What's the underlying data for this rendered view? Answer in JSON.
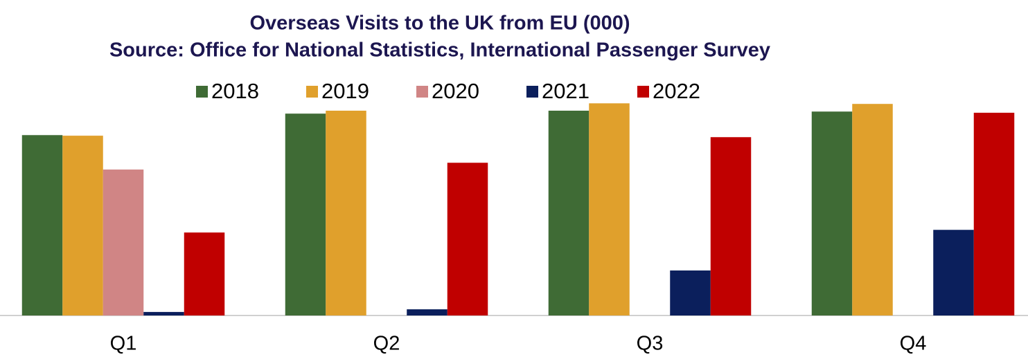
{
  "chart_data": {
    "type": "bar",
    "title": "Overseas Visits to the UK from EU (000)",
    "subtitle": "Source: Office for National Statistics, International Passenger Survey",
    "categories": [
      "Q1",
      "Q2",
      "Q3",
      "Q4"
    ],
    "series": [
      {
        "name": "2018",
        "color": "#3f6b35",
        "values": [
          6130,
          6860,
          6960,
          6930
        ]
      },
      {
        "name": "2019",
        "color": "#e0a02c",
        "values": [
          6110,
          6960,
          7210,
          7190
        ]
      },
      {
        "name": "2020",
        "color": "#d08585",
        "values": [
          4960,
          null,
          null,
          null
        ]
      },
      {
        "name": "2021",
        "color": "#0b1f5c",
        "values": [
          120,
          210,
          1530,
          2910
        ]
      },
      {
        "name": "2022",
        "color": "#c00000",
        "values": [
          2820,
          5190,
          6060,
          6890
        ]
      }
    ],
    "ylim": [
      0,
      7500
    ],
    "legend": "top"
  }
}
